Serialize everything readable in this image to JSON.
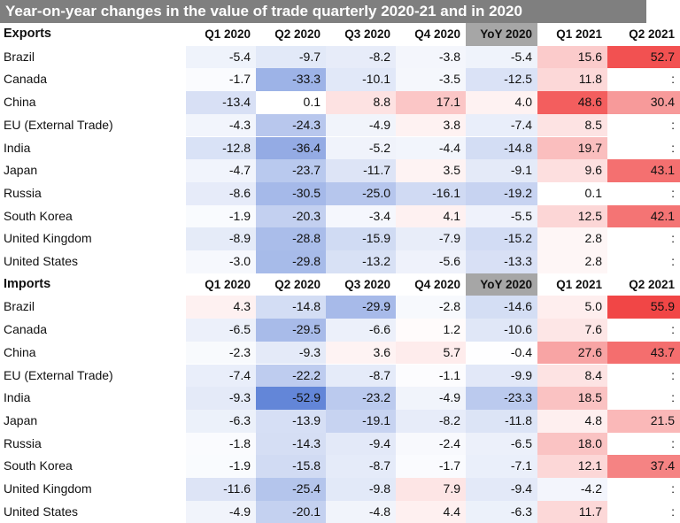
{
  "chart_data": {
    "type": "heatmap",
    "title": "Year-on-year changes  in the value of trade quarterly 2020-21 and in 2020",
    "columns": [
      "Q1 2020",
      "Q2 2020",
      "Q3 2020",
      "Q4 2020",
      "YoY 2020",
      "Q1 2021",
      "Q2 2021"
    ],
    "missing_marker": ":",
    "color_scale": {
      "negative": "#5b7fd6",
      "neutral": "#ffffff",
      "positive": "#f03c3c"
    },
    "sections": [
      {
        "name": "Exports",
        "rows": [
          {
            "label": "Brazil",
            "values": [
              -5.4,
              -9.7,
              -8.2,
              -3.8,
              -5.4,
              15.6,
              52.7
            ]
          },
          {
            "label": "Canada",
            "values": [
              -1.7,
              -33.3,
              -10.1,
              -3.5,
              -12.5,
              11.8,
              null
            ]
          },
          {
            "label": "China",
            "values": [
              -13.4,
              0.1,
              8.8,
              17.1,
              4.0,
              48.6,
              30.4
            ]
          },
          {
            "label": "EU (External Trade)",
            "values": [
              -4.3,
              -24.3,
              -4.9,
              3.8,
              -7.4,
              8.5,
              null
            ]
          },
          {
            "label": "India",
            "values": [
              -12.8,
              -36.4,
              -5.2,
              -4.4,
              -14.8,
              19.7,
              null
            ]
          },
          {
            "label": "Japan",
            "values": [
              -4.7,
              -23.7,
              -11.7,
              3.5,
              -9.1,
              9.6,
              43.1
            ]
          },
          {
            "label": "Russia",
            "values": [
              -8.6,
              -30.5,
              -25.0,
              -16.1,
              -19.2,
              0.1,
              null
            ]
          },
          {
            "label": "South Korea",
            "values": [
              -1.9,
              -20.3,
              -3.4,
              4.1,
              -5.5,
              12.5,
              42.1
            ]
          },
          {
            "label": "United Kingdom",
            "values": [
              -8.9,
              -28.8,
              -15.9,
              -7.9,
              -15.2,
              2.8,
              null
            ]
          },
          {
            "label": "United States",
            "values": [
              -3.0,
              -29.8,
              -13.2,
              -5.6,
              -13.3,
              2.8,
              null
            ]
          }
        ]
      },
      {
        "name": "Imports",
        "rows": [
          {
            "label": "Brazil",
            "values": [
              4.3,
              -14.8,
              -29.9,
              -2.8,
              -14.6,
              5.0,
              55.9
            ]
          },
          {
            "label": "Canada",
            "values": [
              -6.5,
              -29.5,
              -6.6,
              1.2,
              -10.6,
              7.6,
              null
            ]
          },
          {
            "label": "China",
            "values": [
              -2.3,
              -9.3,
              3.6,
              5.7,
              -0.4,
              27.6,
              43.7
            ]
          },
          {
            "label": "EU (External Trade)",
            "values": [
              -7.4,
              -22.2,
              -8.7,
              -1.1,
              -9.9,
              8.4,
              null
            ]
          },
          {
            "label": "India",
            "values": [
              -9.3,
              -52.9,
              -23.2,
              -4.9,
              -23.3,
              18.5,
              null
            ]
          },
          {
            "label": "Japan",
            "values": [
              -6.3,
              -13.9,
              -19.1,
              -8.2,
              -11.8,
              4.8,
              21.5
            ]
          },
          {
            "label": "Russia",
            "values": [
              -1.8,
              -14.3,
              -9.4,
              -2.4,
              -6.5,
              18.0,
              null
            ]
          },
          {
            "label": "South Korea",
            "values": [
              -1.9,
              -15.8,
              -8.7,
              -1.7,
              -7.1,
              12.1,
              37.4
            ]
          },
          {
            "label": "United Kingdom",
            "values": [
              -11.6,
              -25.4,
              -9.8,
              7.9,
              -9.4,
              -4.2,
              null
            ]
          },
          {
            "label": "United States",
            "values": [
              -4.9,
              -20.1,
              -4.8,
              4.4,
              -6.3,
              11.7,
              null
            ]
          }
        ]
      }
    ]
  }
}
